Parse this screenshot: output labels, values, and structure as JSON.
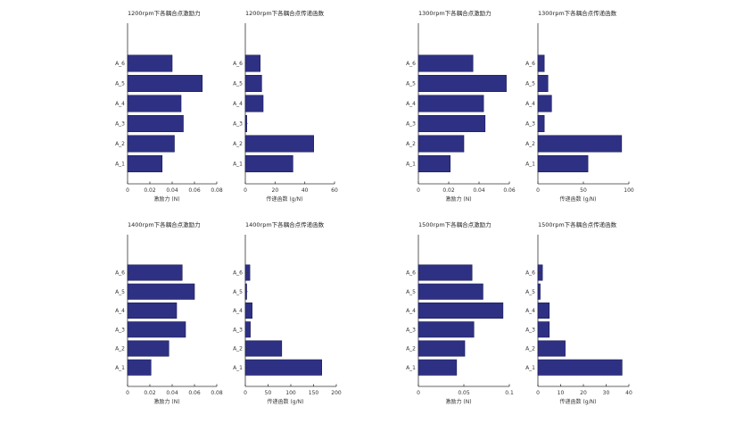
{
  "chart_data": [
    {
      "type": "bar",
      "orientation": "horizontal",
      "title": "1200rpm下各耦合点激励力",
      "xlabel": "激励力 (N)",
      "categories": [
        "A_1",
        "A_2",
        "A_3",
        "A_4",
        "A_5",
        "A_6"
      ],
      "values": [
        0.031,
        0.042,
        0.05,
        0.048,
        0.067,
        0.04
      ],
      "xlim": [
        0,
        0.08
      ],
      "xticks": [
        "0",
        "0.02",
        "0.04",
        "0.06",
        "0.08"
      ],
      "tick_values": [
        0,
        0.02,
        0.04,
        0.06,
        0.08
      ]
    },
    {
      "type": "bar",
      "orientation": "horizontal",
      "title": "1200rpm下各耦合点传递函数",
      "xlabel": "传递函数 (g/N)",
      "categories": [
        "A_1",
        "A_2",
        "A_3",
        "A_4",
        "A_5",
        "A_6"
      ],
      "values": [
        32,
        46,
        1,
        12,
        11,
        10
      ],
      "xlim": [
        0,
        60
      ],
      "xticks": [
        "0",
        "20",
        "40",
        "60"
      ],
      "tick_values": [
        0,
        20,
        40,
        60
      ]
    },
    {
      "type": "bar",
      "orientation": "horizontal",
      "title": "1300rpm下各耦合点激励力",
      "xlabel": "激励力 (N)",
      "categories": [
        "A_1",
        "A_2",
        "A_3",
        "A_4",
        "A_5",
        "A_6"
      ],
      "values": [
        0.021,
        0.03,
        0.044,
        0.043,
        0.058,
        0.036
      ],
      "xlim": [
        0,
        0.06
      ],
      "xticks": [
        "0",
        "0.02",
        "0.04",
        "0.06"
      ],
      "tick_values": [
        0,
        0.02,
        0.04,
        0.06
      ]
    },
    {
      "type": "bar",
      "orientation": "horizontal",
      "title": "1300rpm下各耦合点传递函数",
      "xlabel": "传递函数 (g/N)",
      "categories": [
        "A_1",
        "A_2",
        "A_3",
        "A_4",
        "A_5",
        "A_6"
      ],
      "values": [
        55,
        92,
        7,
        15,
        11,
        7
      ],
      "xlim": [
        0,
        100
      ],
      "xticks": [
        "0",
        "50",
        "100"
      ],
      "tick_values": [
        0,
        50,
        100
      ]
    },
    {
      "type": "bar",
      "orientation": "horizontal",
      "title": "1400rpm下各耦合点激励力",
      "xlabel": "激励力 (N)",
      "categories": [
        "A_1",
        "A_2",
        "A_3",
        "A_4",
        "A_5",
        "A_6"
      ],
      "values": [
        0.021,
        0.037,
        0.052,
        0.044,
        0.06,
        0.049
      ],
      "xlim": [
        0,
        0.08
      ],
      "xticks": [
        "0",
        "0.02",
        "0.04",
        "0.06",
        "0.08"
      ],
      "tick_values": [
        0,
        0.02,
        0.04,
        0.06,
        0.08
      ]
    },
    {
      "type": "bar",
      "orientation": "horizontal",
      "title": "1400rpm下各耦合点传递函数",
      "xlabel": "传递函数 (g/N)",
      "categories": [
        "A_1",
        "A_2",
        "A_3",
        "A_4",
        "A_5",
        "A_6"
      ],
      "values": [
        168,
        80,
        11,
        15,
        3,
        10
      ],
      "xlim": [
        0,
        200
      ],
      "xticks": [
        "0",
        "50",
        "100",
        "150",
        "200"
      ],
      "tick_values": [
        0,
        50,
        100,
        150,
        200
      ]
    },
    {
      "type": "bar",
      "orientation": "horizontal",
      "title": "1500rpm下各耦合点激励力",
      "xlabel": "激励力 (N)",
      "categories": [
        "A_1",
        "A_2",
        "A_3",
        "A_4",
        "A_5",
        "A_6"
      ],
      "values": [
        0.042,
        0.051,
        0.061,
        0.093,
        0.071,
        0.059
      ],
      "xlim": [
        0,
        0.1
      ],
      "xticks": [
        "0",
        "0.05",
        "0.1"
      ],
      "tick_values": [
        0,
        0.05,
        0.1
      ]
    },
    {
      "type": "bar",
      "orientation": "horizontal",
      "title": "1500rpm下各耦合点传递函数",
      "xlabel": "传递函数 (g/N)",
      "categories": [
        "A_1",
        "A_2",
        "A_3",
        "A_4",
        "A_5",
        "A_6"
      ],
      "values": [
        37,
        12,
        5,
        5,
        1,
        2
      ],
      "xlim": [
        0,
        40
      ],
      "xticks": [
        "0",
        "10",
        "20",
        "30",
        "40"
      ],
      "tick_values": [
        0,
        10,
        20,
        30,
        40
      ]
    }
  ]
}
